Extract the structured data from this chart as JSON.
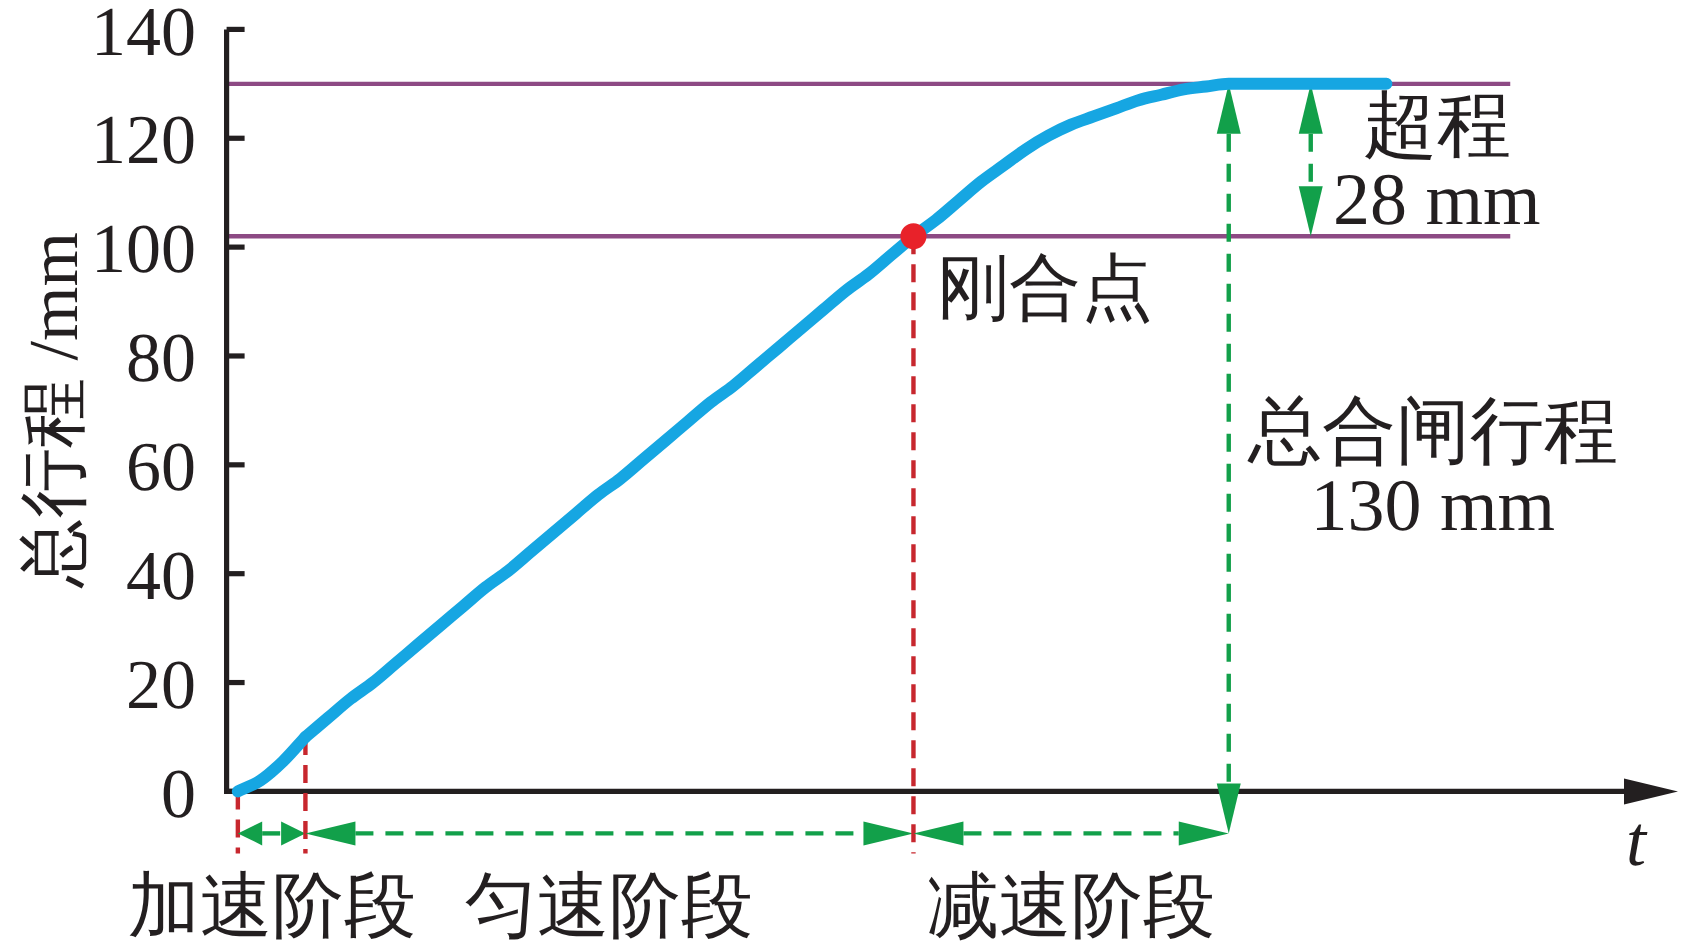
{
  "chart_data": {
    "type": "line",
    "xlabel": "t",
    "ylabel": "总行程 /mm",
    "categories": [
      null,
      null,
      null,
      null,
      null,
      null,
      null,
      null,
      null,
      null,
      null,
      null,
      null,
      null,
      null,
      null,
      null,
      null,
      null,
      null,
      null,
      null,
      null,
      null,
      null,
      null,
      null,
      null,
      null,
      null,
      null,
      null,
      null,
      null,
      null,
      null,
      null,
      null,
      null,
      null,
      null,
      null,
      null,
      null,
      null,
      null,
      null,
      null,
      null,
      null,
      null,
      null,
      null,
      null,
      null,
      null,
      null
    ],
    "series": [
      {
        "color": "#16a6e2",
        "values": [
          0,
          2,
          5.5,
          10,
          null,
          null,
          null,
          null,
          null,
          null,
          null,
          null,
          null,
          null,
          null,
          null,
          null,
          null,
          null,
          null,
          null,
          null,
          null,
          null,
          null,
          null,
          null,
          null,
          null,
          null,
          null,
          null,
          null,
          null,
          null,
          null,
          null,
          null,
          null,
          null,
          null,
          null,
          null,
          null,
          null,
          null,
          null,
          null,
          null,
          null,
          null,
          null,
          null,
          null,
          null,
          null,
          null
        ]
      },
      {
        "color": "#16a6e2",
        "values": [
          null,
          null,
          null,
          10,
          13.5,
          17,
          20,
          23.5,
          27,
          30.5,
          34,
          37.5,
          40.5,
          44,
          47.5,
          51,
          54.5,
          57.5,
          61,
          64.5,
          68,
          71.5,
          74.5,
          78,
          81.5,
          85,
          88.5,
          92,
          95,
          98.5,
          102,
          null,
          null,
          null,
          null,
          null,
          null,
          null,
          null,
          null,
          null,
          null,
          null,
          null,
          null,
          null,
          null,
          null,
          null,
          null,
          null,
          null,
          null,
          null,
          null,
          null,
          null
        ]
      },
      {
        "color": "#16a6e2",
        "values": [
          null,
          null,
          null,
          null,
          null,
          null,
          null,
          null,
          null,
          null,
          null,
          null,
          null,
          null,
          null,
          null,
          null,
          null,
          null,
          null,
          null,
          null,
          null,
          null,
          null,
          null,
          null,
          null,
          null,
          null,
          102,
          105,
          108.5,
          112,
          115,
          118,
          120.5,
          122.5,
          124,
          125.5,
          127,
          128,
          129,
          129.5,
          130,
          130,
          130,
          130,
          130,
          130,
          130,
          130,
          null,
          null,
          null,
          null,
          null
        ]
      },
      {
        "type": "scatter",
        "color": "#e8222a",
        "values": [
          null,
          null,
          null,
          null,
          null,
          null,
          null,
          null,
          null,
          null,
          null,
          null,
          null,
          null,
          null,
          null,
          null,
          null,
          null,
          null,
          null,
          null,
          null,
          null,
          null,
          null,
          null,
          null,
          null,
          null,
          102,
          null,
          null,
          null,
          null,
          null,
          null,
          null,
          null,
          null,
          null,
          null,
          null,
          null,
          null,
          null,
          null,
          null,
          null,
          null,
          null,
          null,
          null,
          null,
          null,
          null,
          null
        ]
      }
    ],
    "ylim": [
      0,
      140
    ],
    "yticks": [
      0,
      20,
      40,
      60,
      80,
      100,
      120,
      140
    ],
    "ref_lines": [
      {
        "axis": "y",
        "value": 130,
        "color": "#8d4a84"
      },
      {
        "axis": "y",
        "value": 102,
        "color": "#8d4a84"
      }
    ],
    "annotations": [
      "加速阶段",
      "匀速阶段",
      "减速阶段",
      {
        "text": "刚合点",
        "y": 102
      },
      "超程\n28 mm",
      "总合闸行程\n130 mm"
    ]
  }
}
